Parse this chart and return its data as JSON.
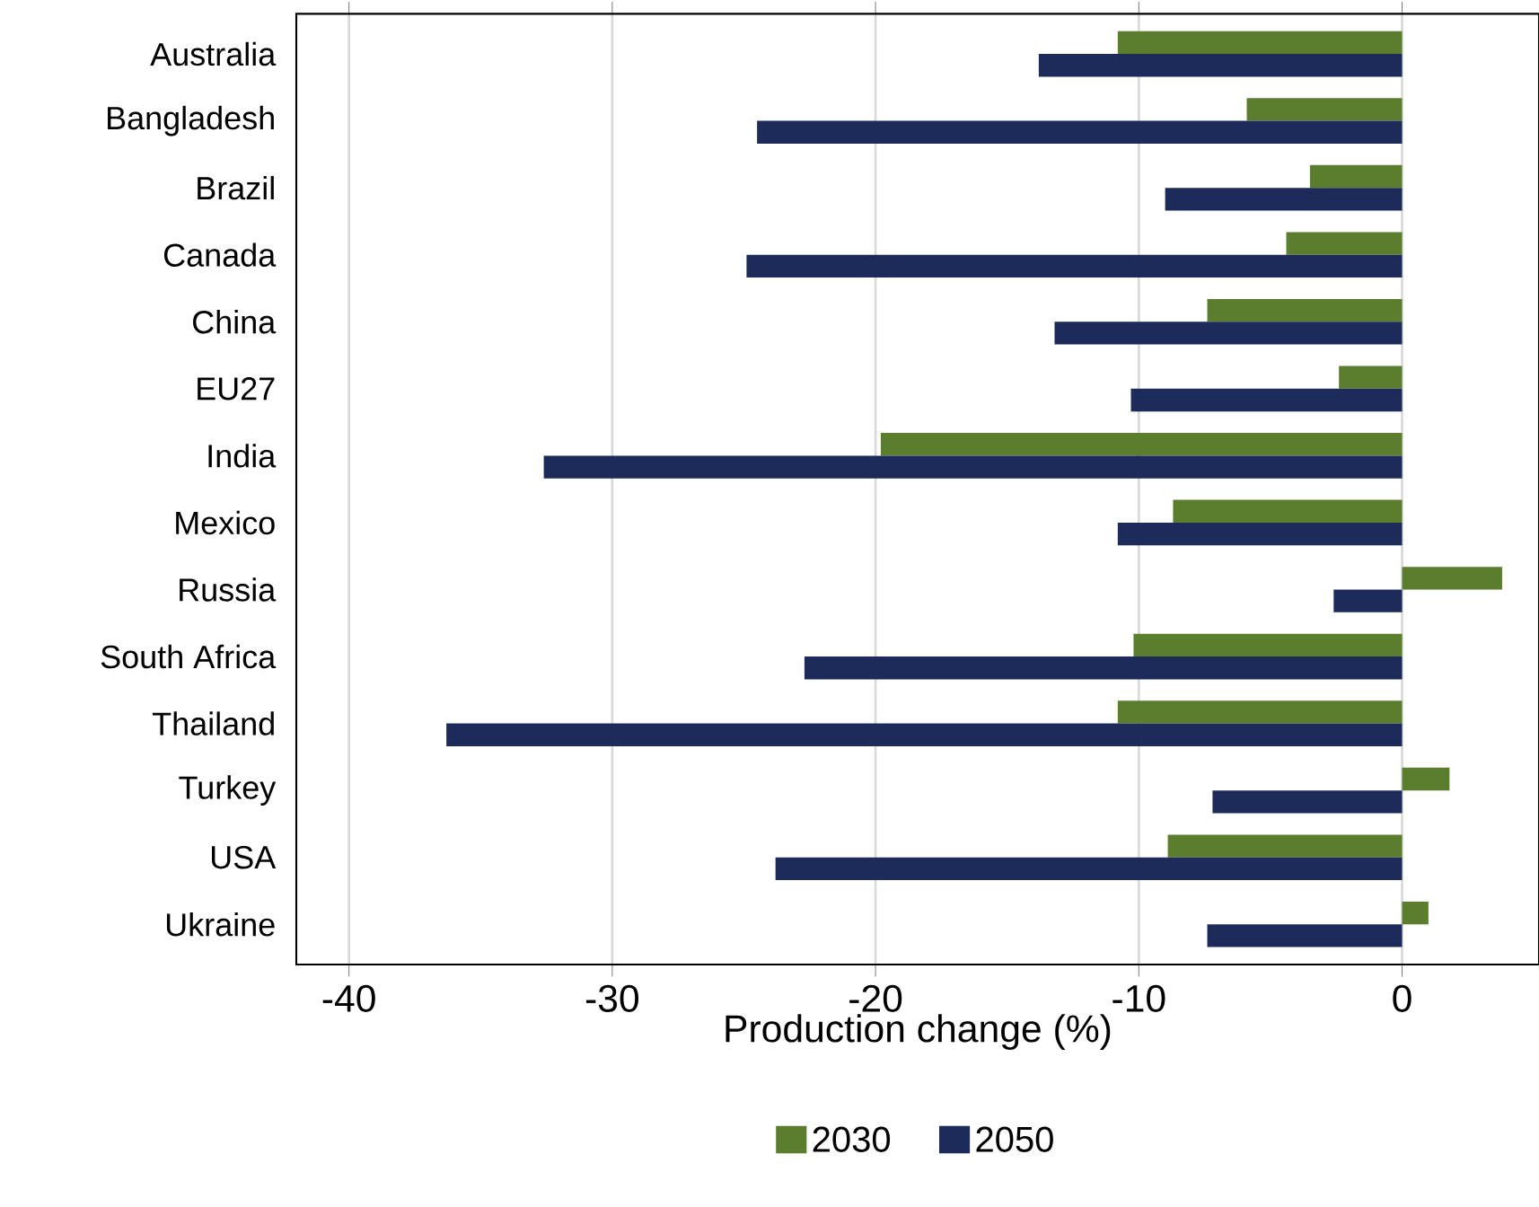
{
  "chart_data": {
    "type": "bar",
    "orientation": "horizontal",
    "xlabel": "Production change (%)",
    "categories": [
      "Australia",
      "Bangladesh",
      "Brazil",
      "Canada",
      "China",
      "EU27",
      "India",
      "Mexico",
      "Russia",
      "South Africa",
      "Thailand",
      "Turkey",
      "USA",
      "Ukraine"
    ],
    "series": [
      {
        "name": "2030",
        "color": "#5b7d2e",
        "values": [
          -10.8,
          -5.9,
          -3.5,
          -4.4,
          -7.4,
          -2.4,
          -19.8,
          -8.7,
          3.8,
          -10.2,
          -10.8,
          1.8,
          -8.9,
          1.0
        ]
      },
      {
        "name": "2050",
        "color": "#1c2b5a",
        "values": [
          -13.8,
          -24.5,
          -9.0,
          -24.9,
          -13.2,
          -10.3,
          -32.6,
          -10.8,
          -2.6,
          -22.7,
          -36.3,
          -7.2,
          -23.8,
          -7.4
        ]
      }
    ],
    "xlim": [
      -42,
      5.2
    ],
    "xticks": [
      -40,
      -30,
      -20,
      -10,
      0
    ],
    "grid": "x",
    "legend": "bottom"
  }
}
